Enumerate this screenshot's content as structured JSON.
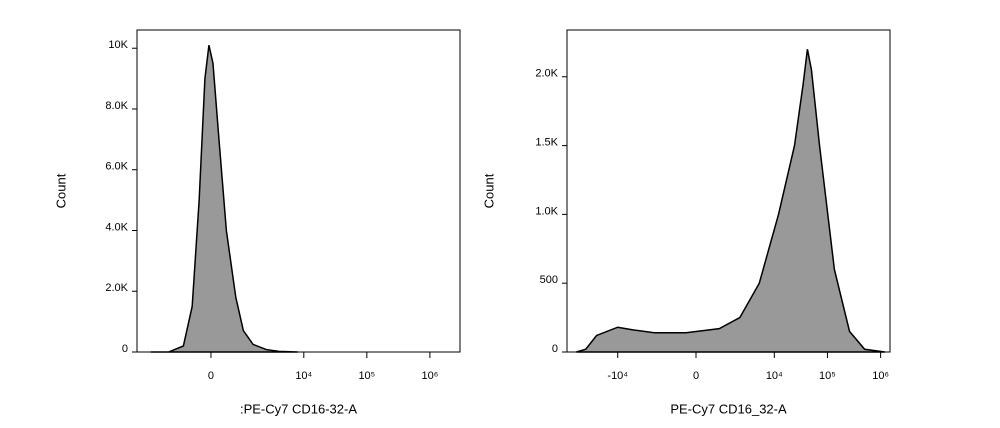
{
  "chart_data": [
    {
      "type": "area",
      "x_label": ":PE-Cy7 CD16-32-A",
      "y_label": "Count",
      "x_scale": "biexponential",
      "x": [
        -3000,
        -1500,
        -800,
        -500,
        -300,
        -150,
        -50,
        50,
        200,
        400,
        700,
        1000,
        1500,
        2500,
        4000,
        8000
      ],
      "values": [
        0,
        0,
        200,
        1500,
        5000,
        9000,
        10100,
        9500,
        7000,
        4000,
        1800,
        700,
        250,
        80,
        20,
        0
      ],
      "color": "#999999",
      "xlim": [
        -5000,
        3000000
      ],
      "xticks": [
        0,
        {
          "value": 10000,
          "label": "10⁴"
        },
        {
          "value": 100000,
          "label": "10⁵"
        },
        {
          "value": 1000000,
          "label": "10⁶"
        }
      ],
      "ylim": [
        0,
        10600
      ],
      "yticks": [
        0,
        {
          "value": 2000,
          "label": "2.0K"
        },
        {
          "value": 4000,
          "label": "4.0K"
        },
        {
          "value": 6000,
          "label": "6.0K"
        },
        {
          "value": 8000,
          "label": "8.0K"
        },
        {
          "value": 10000,
          "label": "10K"
        }
      ]
    },
    {
      "type": "area",
      "x_label": "PE-Cy7 CD16_32-A",
      "y_label": "Count",
      "x_scale": "biexponential",
      "x": [
        -60000,
        -40000,
        -25000,
        -10000,
        -5000,
        -2000,
        -300,
        800,
        2200,
        5200,
        12000,
        24000,
        35000,
        42000,
        50000,
        71000,
        135000,
        260000,
        500000,
        1200000
      ],
      "values": [
        0,
        20,
        120,
        180,
        160,
        140,
        140,
        170,
        250,
        500,
        1000,
        1500,
        1950,
        2200,
        2050,
        1500,
        600,
        150,
        20,
        0
      ],
      "color": "#999999",
      "xlim": [
        -90000,
        1500000
      ],
      "xticks": [
        {
          "value": -10000,
          "label": "-10⁴"
        },
        0,
        {
          "value": 10000,
          "label": "10⁴"
        },
        {
          "value": 100000,
          "label": "10⁵"
        },
        {
          "value": 1000000,
          "label": "10⁶"
        }
      ],
      "ylim": [
        0,
        2340
      ],
      "yticks": [
        0,
        500,
        {
          "value": 1000,
          "label": "1.0K"
        },
        {
          "value": 1500,
          "label": "1.5K"
        },
        {
          "value": 2000,
          "label": "2.0K"
        }
      ]
    }
  ]
}
